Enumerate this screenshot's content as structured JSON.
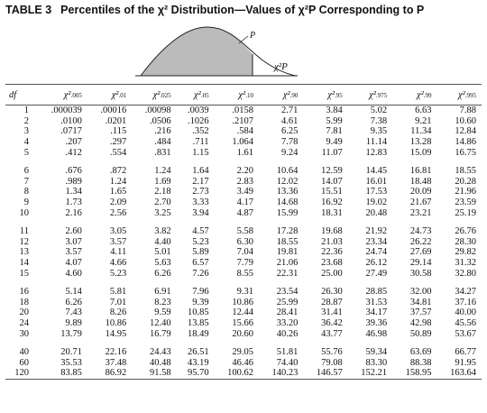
{
  "title": {
    "label": "TABLE 3",
    "text": "Percentiles of the χ² Distribution—Values of χ²P Corresponding to P"
  },
  "figure": {
    "p_label": "P",
    "x_label": "χ²P"
  },
  "table": {
    "df_header": "df",
    "columns": [
      ".005",
      ".01",
      ".025",
      ".05",
      ".10",
      ".90",
      ".95",
      ".975",
      ".99",
      ".995"
    ],
    "groups": [
      [
        [
          "1",
          ".000039",
          ".00016",
          ".00098",
          ".0039",
          ".0158",
          "2.71",
          "3.84",
          "5.02",
          "6.63",
          "7.88"
        ],
        [
          "2",
          ".0100",
          ".0201",
          ".0506",
          ".1026",
          ".2107",
          "4.61",
          "5.99",
          "7.38",
          "9.21",
          "10.60"
        ],
        [
          "3",
          ".0717",
          ".115",
          ".216",
          ".352",
          ".584",
          "6.25",
          "7.81",
          "9.35",
          "11.34",
          "12.84"
        ],
        [
          "4",
          ".207",
          ".297",
          ".484",
          ".711",
          "1.064",
          "7.78",
          "9.49",
          "11.14",
          "13.28",
          "14.86"
        ],
        [
          "5",
          ".412",
          ".554",
          ".831",
          "1.15",
          "1.61",
          "9.24",
          "11.07",
          "12.83",
          "15.09",
          "16.75"
        ]
      ],
      [
        [
          "6",
          ".676",
          ".872",
          "1.24",
          "1.64",
          "2.20",
          "10.64",
          "12.59",
          "14.45",
          "16.81",
          "18.55"
        ],
        [
          "7",
          ".989",
          "1.24",
          "1.69",
          "2.17",
          "2.83",
          "12.02",
          "14.07",
          "16.01",
          "18.48",
          "20.28"
        ],
        [
          "8",
          "1.34",
          "1.65",
          "2.18",
          "2.73",
          "3.49",
          "13.36",
          "15.51",
          "17.53",
          "20.09",
          "21.96"
        ],
        [
          "9",
          "1.73",
          "2.09",
          "2.70",
          "3.33",
          "4.17",
          "14.68",
          "16.92",
          "19.02",
          "21.67",
          "23.59"
        ],
        [
          "10",
          "2.16",
          "2.56",
          "3.25",
          "3.94",
          "4.87",
          "15.99",
          "18.31",
          "20.48",
          "23.21",
          "25.19"
        ]
      ],
      [
        [
          "11",
          "2.60",
          "3.05",
          "3.82",
          "4.57",
          "5.58",
          "17.28",
          "19.68",
          "21.92",
          "24.73",
          "26.76"
        ],
        [
          "12",
          "3.07",
          "3.57",
          "4.40",
          "5.23",
          "6.30",
          "18.55",
          "21.03",
          "23.34",
          "26.22",
          "28.30"
        ],
        [
          "13",
          "3.57",
          "4.11",
          "5.01",
          "5.89",
          "7.04",
          "19.81",
          "22.36",
          "24.74",
          "27.69",
          "29.82"
        ],
        [
          "14",
          "4.07",
          "4.66",
          "5.63",
          "6.57",
          "7.79",
          "21.06",
          "23.68",
          "26.12",
          "29.14",
          "31.32"
        ],
        [
          "15",
          "4.60",
          "5.23",
          "6.26",
          "7.26",
          "8.55",
          "22.31",
          "25.00",
          "27.49",
          "30.58",
          "32.80"
        ]
      ],
      [
        [
          "16",
          "5.14",
          "5.81",
          "6.91",
          "7.96",
          "9.31",
          "23.54",
          "26.30",
          "28.85",
          "32.00",
          "34.27"
        ],
        [
          "18",
          "6.26",
          "7.01",
          "8.23",
          "9.39",
          "10.86",
          "25.99",
          "28.87",
          "31.53",
          "34.81",
          "37.16"
        ],
        [
          "20",
          "7.43",
          "8.26",
          "9.59",
          "10.85",
          "12.44",
          "28.41",
          "31.41",
          "34.17",
          "37.57",
          "40.00"
        ],
        [
          "24",
          "9.89",
          "10.86",
          "12.40",
          "13.85",
          "15.66",
          "33.20",
          "36.42",
          "39.36",
          "42.98",
          "45.56"
        ],
        [
          "30",
          "13.79",
          "14.95",
          "16.79",
          "18.49",
          "20.60",
          "40.26",
          "43.77",
          "46.98",
          "50.89",
          "53.67"
        ]
      ],
      [
        [
          "40",
          "20.71",
          "22.16",
          "24.43",
          "26.51",
          "29.05",
          "51.81",
          "55.76",
          "59.34",
          "63.69",
          "66.77"
        ],
        [
          "60",
          "35.53",
          "37.48",
          "40.48",
          "43.19",
          "46.46",
          "74.40",
          "79.08",
          "83.30",
          "88.38",
          "91.95"
        ],
        [
          "120",
          "83.85",
          "86.92",
          "91.58",
          "95.70",
          "100.62",
          "140.23",
          "146.57",
          "152.21",
          "158.95",
          "163.64"
        ]
      ]
    ]
  }
}
